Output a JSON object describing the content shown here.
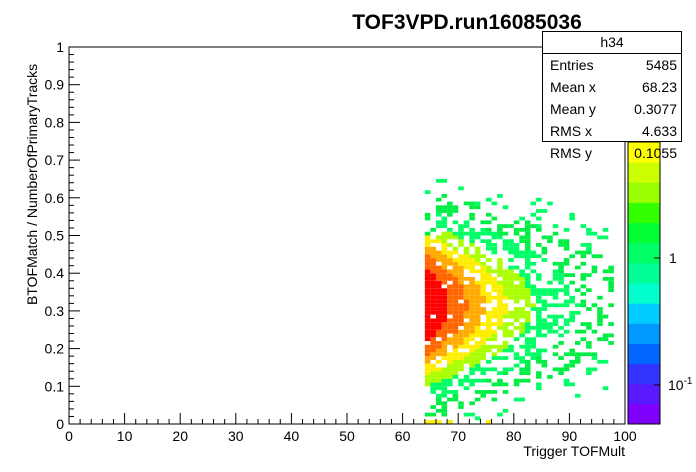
{
  "title": "TOF3VPD.run16085036",
  "stats": {
    "name": "h34",
    "rows": [
      {
        "label": "Entries",
        "value": "5485"
      },
      {
        "label": "Mean x",
        "value": "68.23"
      },
      {
        "label": "Mean y",
        "value": "0.3077"
      },
      {
        "label": "RMS x",
        "value": "4.633"
      },
      {
        "label": "RMS y",
        "value": "0.1055"
      }
    ]
  },
  "chart_data": {
    "type": "heatmap",
    "title": "TOF3VPD.run16085036",
    "xlabel": "Trigger TOFMult",
    "ylabel": "BTOFMatch / NumberOfPrimaryTracks",
    "xlim": [
      0,
      100
    ],
    "ylim": [
      0,
      1
    ],
    "x_ticks": [
      "0",
      "10",
      "20",
      "30",
      "40",
      "50",
      "60",
      "70",
      "80",
      "90",
      "100"
    ],
    "y_ticks": [
      "0",
      "0.1",
      "0.2",
      "0.3",
      "0.4",
      "0.5",
      "0.6",
      "0.7",
      "0.8",
      "0.9",
      "1"
    ],
    "z_scale": "log",
    "z_tick_labels": [
      "1",
      "10^-1"
    ],
    "palette": [
      "#7f00ff",
      "#5a1aff",
      "#3333ff",
      "#0066ff",
      "#0099ff",
      "#00ccff",
      "#00ffcc",
      "#00ff99",
      "#00ff66",
      "#00ff33",
      "#33ff00",
      "#99ff00",
      "#ccff00",
      "#ffff00"
    ],
    "cell_colors": {
      "high": "#ff0000",
      "orange": "#ff6600",
      "amber": "#ffaa00",
      "yellow": "#ffee00",
      "yellowgreen": "#aaff00",
      "green": "#00ff66",
      "darkgreen": "#00ee44",
      "cyan": "#00ffcc"
    },
    "grid": false,
    "entries": 5485,
    "mean_x": 68.23,
    "mean_y": 0.3077,
    "rms_x": 4.633,
    "rms_y": 0.1055
  }
}
